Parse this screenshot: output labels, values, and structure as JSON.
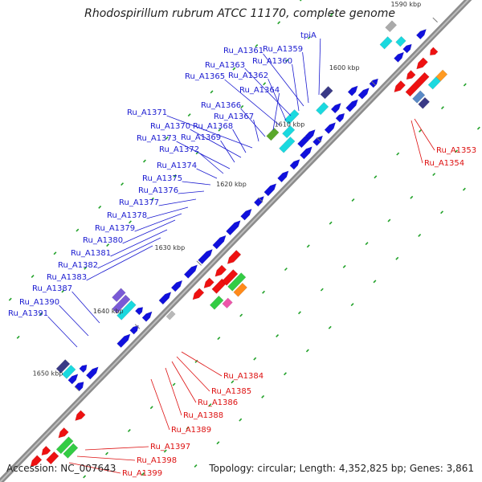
{
  "header": {
    "title": "Rhodospirillum rubrum ATCC 11170, complete genome"
  },
  "footer": {
    "accession": "Accession: NC_007643",
    "topology": "Topology: circular; Length: 4,352,825 bp; Genes: 3,861"
  },
  "ticks": [
    "1590 kbp",
    "1600 kbp",
    "1610 kbp",
    "1620 kbp",
    "1630 kbp",
    "1640 kbp",
    "1650 kbp"
  ],
  "forward_labels": [
    "tpiA",
    "Ru_A1359",
    "Ru_A1361",
    "Ru_A1360",
    "Ru_A1363",
    "Ru_A1362",
    "Ru_A1365",
    "Ru_A1364",
    "Ru_A1366",
    "Ru_A1367",
    "Ru_A1371",
    "Ru_A1368",
    "Ru_A1370",
    "Ru_A1369",
    "Ru_A1373",
    "Ru_A1372",
    "Ru_A1374",
    "Ru_A1375",
    "Ru_A1376",
    "Ru_A1377",
    "Ru_A1378",
    "Ru_A1379",
    "Ru_A1380",
    "Ru_A1381",
    "Ru_A1382",
    "Ru_A1383",
    "Ru_A1387",
    "Ru_A1390",
    "Ru_A1391"
  ],
  "reverse_labels": [
    "Ru_A1353",
    "Ru_A1354",
    "Ru_A1384",
    "Ru_A1385",
    "Ru_A1386",
    "Ru_A1388",
    "Ru_A1389",
    "Ru_A1397",
    "Ru_A1398",
    "Ru_A1399"
  ],
  "colors": {
    "backbone": "#8c8c8c",
    "forward": "#1010dd",
    "reverse": "#ee1111",
    "forward_label": "#1a1ad0",
    "reverse_label": "#dd1111",
    "cyan": "#1ad9df",
    "navy": "#3a3a86",
    "violet": "#7a5ad6",
    "green": "#33cc44",
    "dots": "#22a22a"
  }
}
